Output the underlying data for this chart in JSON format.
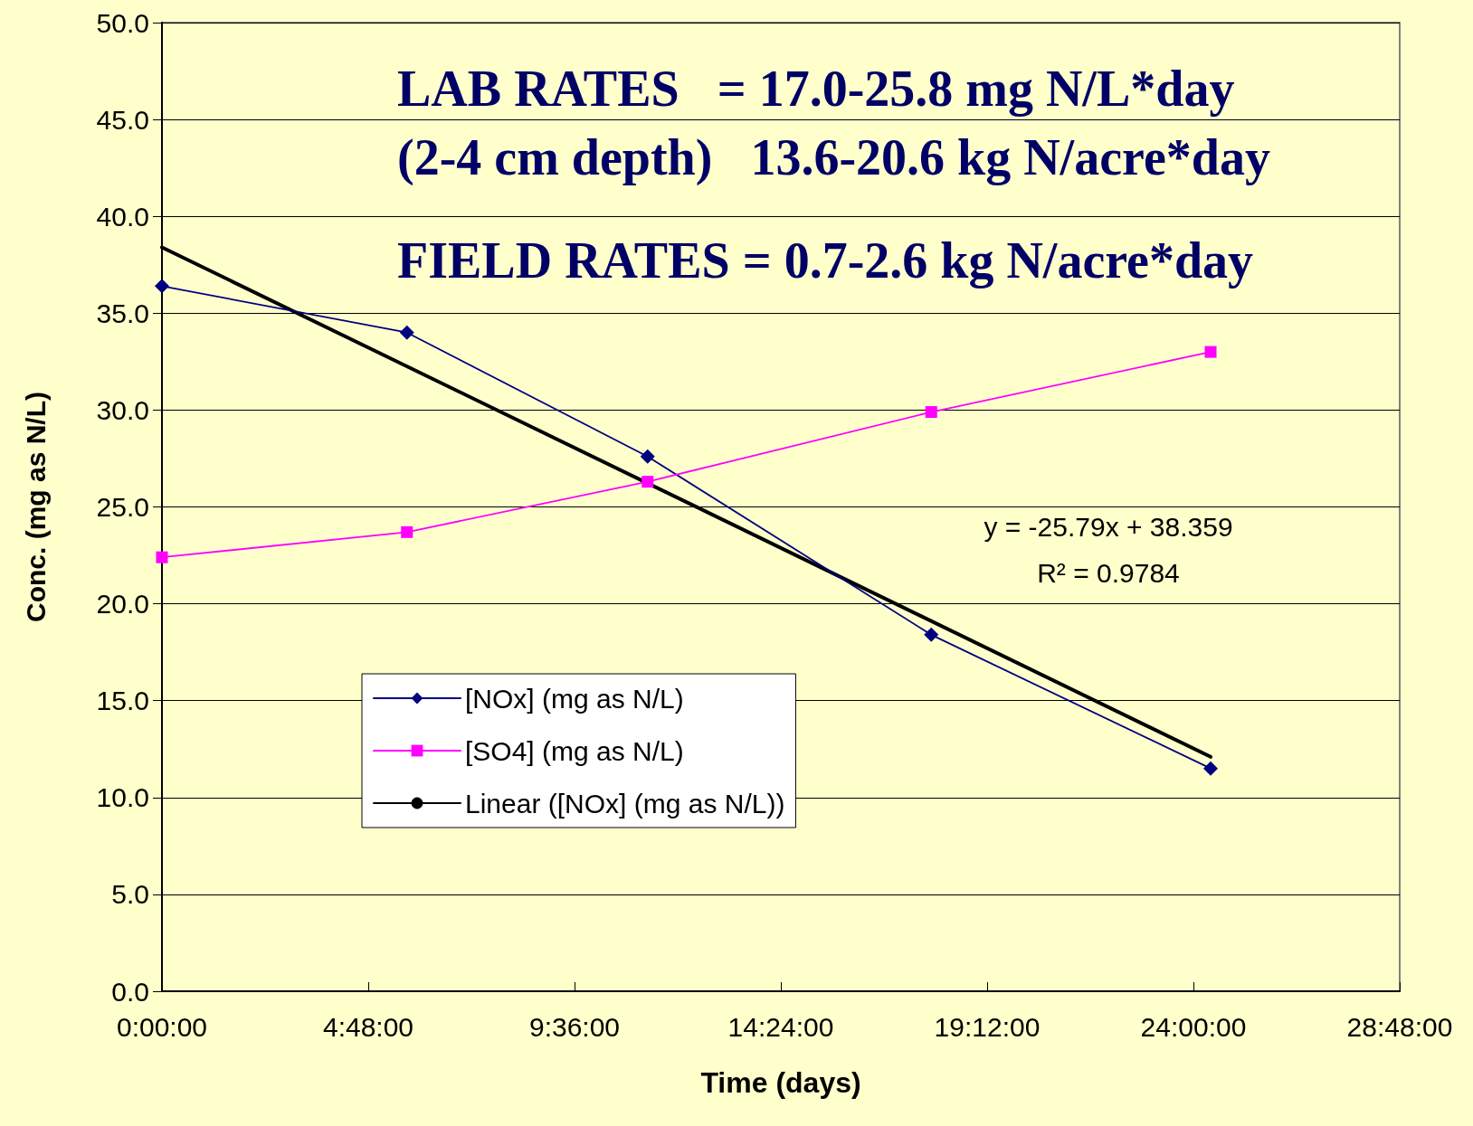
{
  "chart_data": {
    "type": "line",
    "xlabel": "Time (days)",
    "ylabel": "Conc. (mg as N/L)",
    "xlim": [
      0,
      28.8
    ],
    "xticks": [
      {
        "value": 0,
        "label": "0:00:00"
      },
      {
        "value": 4.8,
        "label": "4:48:00"
      },
      {
        "value": 9.6,
        "label": "9:36:00"
      },
      {
        "value": 14.4,
        "label": "14:24:00"
      },
      {
        "value": 19.2,
        "label": "19:12:00"
      },
      {
        "value": 24,
        "label": "24:00:00"
      },
      {
        "value": 28.8,
        "label": "28:48:00"
      }
    ],
    "ylim": [
      0,
      50
    ],
    "yticks": [
      {
        "value": 0,
        "label": "0.0"
      },
      {
        "value": 5,
        "label": "5.0"
      },
      {
        "value": 10,
        "label": "10.0"
      },
      {
        "value": 15,
        "label": "15.0"
      },
      {
        "value": 20,
        "label": "20.0"
      },
      {
        "value": 25,
        "label": "25.0"
      },
      {
        "value": 30,
        "label": "30.0"
      },
      {
        "value": 35,
        "label": "35.0"
      },
      {
        "value": 40,
        "label": "40.0"
      },
      {
        "value": 45,
        "label": "45.0"
      },
      {
        "value": 50,
        "label": "50.0"
      }
    ],
    "grid": "y",
    "legend": "bottom left",
    "series": [
      {
        "name": "[NOx] (mg as N/L)",
        "color": "#000080",
        "marker": "diamond",
        "x": [
          0,
          5.7,
          11.3,
          17.9,
          24.4
        ],
        "values": [
          36.4,
          34.0,
          27.6,
          18.4,
          11.5
        ]
      },
      {
        "name": "[SO4] (mg as N/L)",
        "color": "#ff00ff",
        "marker": "square",
        "x": [
          0,
          5.7,
          11.3,
          17.9,
          24.4
        ],
        "values": [
          22.4,
          23.7,
          26.3,
          29.9,
          33.0
        ]
      },
      {
        "name": "Linear ([NOx] (mg as N/L))",
        "color": "#000000",
        "marker": "none",
        "x": [
          0,
          24.4
        ],
        "values": [
          38.4,
          12.1
        ]
      }
    ],
    "annotations": [
      "LAB RATES   = 17.0-25.8 mg N/L*day",
      "(2-4 cm depth)   13.6-20.6 kg N/acre*day",
      "FIELD RATES = 0.7-2.6 kg N/acre*day",
      "y = -25.79x + 38.359",
      "R² = 0.9784"
    ]
  }
}
